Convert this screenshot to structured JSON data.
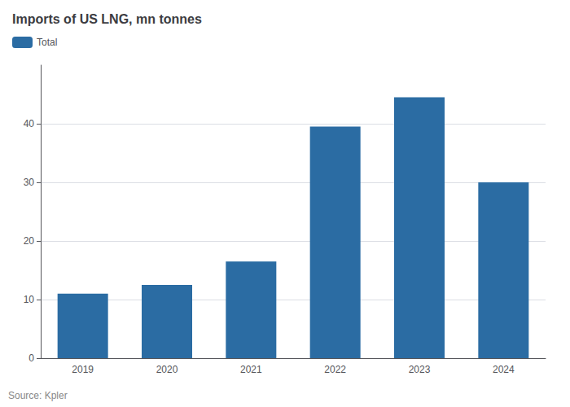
{
  "chart_data": {
    "type": "bar",
    "title": "Imports of US LNG, mn tonnes",
    "annotations": [
      "Source: Kpler"
    ],
    "categories": [
      "2019",
      "2020",
      "2021",
      "2022",
      "2023",
      "2024"
    ],
    "series": [
      {
        "name": "Total",
        "color": "#2b6ca3",
        "values": [
          11,
          12.5,
          16.5,
          39.5,
          44.5,
          30
        ]
      }
    ],
    "ylim": [
      0,
      50
    ],
    "yticks": [
      0,
      10,
      20,
      30,
      40
    ],
    "grid": true,
    "legend": "upper left"
  }
}
